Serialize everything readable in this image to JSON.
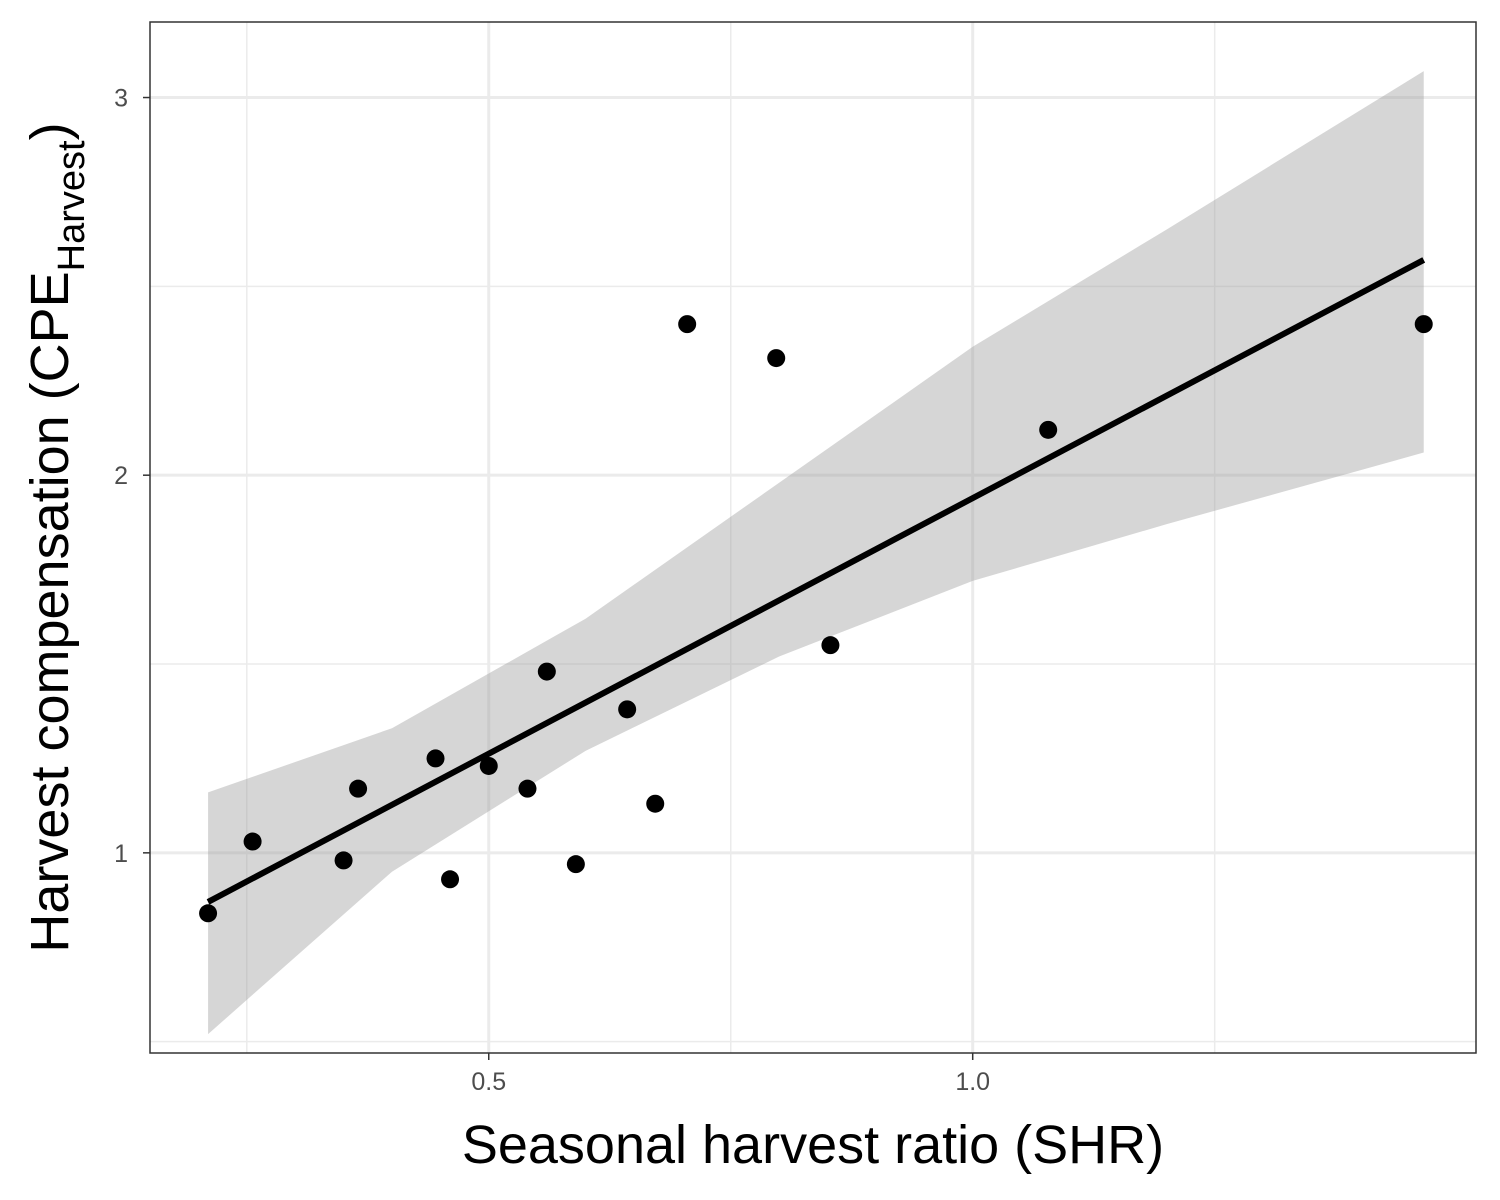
{
  "chart_data": {
    "type": "scatter",
    "title": "",
    "xlabel": "Seasonal harvest ratio (SHR)",
    "ylabel": {
      "main": "Harvest compensation (CPE",
      "subscript": "Harvest",
      "close": ")"
    },
    "xlim": [
      0.15,
      1.52
    ],
    "ylim": [
      0.47,
      3.2
    ],
    "x_ticks": [
      {
        "value": 0.5,
        "label": "0.5"
      },
      {
        "value": 1.0,
        "label": "1.0"
      }
    ],
    "x_minor_ticks": [
      0.25,
      0.75,
      1.25
    ],
    "y_ticks": [
      {
        "value": 1,
        "label": "1"
      },
      {
        "value": 2,
        "label": "2"
      },
      {
        "value": 3,
        "label": "3"
      }
    ],
    "y_minor_ticks": [
      0.5,
      1.5,
      2.5
    ],
    "grid": true,
    "points": [
      {
        "x": 0.21,
        "y": 0.84
      },
      {
        "x": 0.256,
        "y": 1.03
      },
      {
        "x": 0.35,
        "y": 0.98
      },
      {
        "x": 0.365,
        "y": 1.17
      },
      {
        "x": 0.445,
        "y": 1.25
      },
      {
        "x": 0.46,
        "y": 0.93
      },
      {
        "x": 0.5,
        "y": 1.23
      },
      {
        "x": 0.54,
        "y": 1.17
      },
      {
        "x": 0.56,
        "y": 1.48
      },
      {
        "x": 0.59,
        "y": 0.97
      },
      {
        "x": 0.643,
        "y": 1.38
      },
      {
        "x": 0.672,
        "y": 1.13
      },
      {
        "x": 0.705,
        "y": 2.4
      },
      {
        "x": 0.797,
        "y": 2.31
      },
      {
        "x": 0.853,
        "y": 1.55
      },
      {
        "x": 1.078,
        "y": 2.12
      },
      {
        "x": 1.466,
        "y": 2.4
      }
    ],
    "fit_line": {
      "x": [
        0.21,
        1.466
      ],
      "y": [
        0.87,
        2.57
      ]
    },
    "confidence_band": {
      "x": [
        0.21,
        0.4,
        0.6,
        0.8,
        1.0,
        1.2,
        1.466
      ],
      "lower": [
        0.52,
        0.95,
        1.27,
        1.52,
        1.72,
        1.87,
        2.06
      ],
      "upper": [
        1.16,
        1.33,
        1.62,
        1.98,
        2.34,
        2.65,
        3.07
      ]
    },
    "colors": {
      "points": "#000000",
      "line": "#000000",
      "band": "#999999",
      "grid": "#ebebeb",
      "panel_border": "#333333"
    }
  }
}
